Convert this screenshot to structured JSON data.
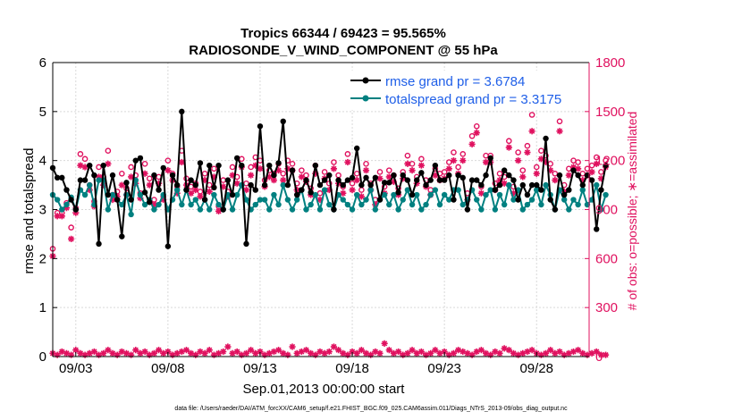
{
  "chart_data": {
    "type": "line",
    "title_line1": "Tropics 66344 / 69423 = 95.565%",
    "title_line2": "RADIOSONDE_V_WIND_COMPONENT @ 55 hPa",
    "xlabel": "Sep.01,2013 00:00:00 start",
    "ylabel_left": "rmse and totalspread",
    "ylabel_right": "# of obs: o=possible; ∗=assimilated",
    "footer": "data file: /Users/raeder/DAI/ATM_forcXX/CAM6_setup/f.e21.FHIST_BGC.f09_025.CAM6assim.011/Diags_NTrS_2013-09/obs_diag_output.nc",
    "xlim": [
      1.75,
      30.85
    ],
    "ylim_left": [
      0,
      6
    ],
    "ylim_right": [
      0,
      1800
    ],
    "x_ticks": [
      3,
      8,
      13,
      18,
      23,
      28
    ],
    "x_tick_labels": [
      "09/03",
      "09/08",
      "09/13",
      "09/18",
      "09/23",
      "09/28"
    ],
    "yleft_ticks": [
      0,
      1,
      2,
      3,
      4,
      5,
      6
    ],
    "yleft_tick_labels": [
      "0",
      "1",
      "2",
      "3",
      "4",
      "5",
      "6"
    ],
    "yright_ticks": [
      0,
      300,
      600,
      900,
      1200,
      1500,
      1800
    ],
    "yright_tick_labels": [
      "0",
      "300",
      "600",
      "900",
      "1200",
      "1500",
      "1800"
    ],
    "x_start": 1.75,
    "x_step": 0.25,
    "series": [
      {
        "name": "rmse",
        "legend": "rmse grand pr = 3.6784",
        "axis": "left",
        "color": "#000000",
        "values": [
          3.85,
          3.65,
          3.65,
          3.4,
          3.2,
          3.0,
          3.6,
          3.6,
          3.9,
          3.7,
          2.3,
          3.9,
          3.3,
          3.7,
          3.2,
          2.45,
          3.55,
          3.2,
          4.0,
          4.05,
          3.35,
          3.15,
          3.7,
          3.4,
          3.85,
          2.25,
          3.7,
          3.5,
          5.0,
          3.4,
          3.6,
          3.5,
          3.95,
          3.2,
          3.9,
          3.45,
          3.9,
          3.0,
          3.6,
          3.3,
          4.05,
          3.9,
          2.3,
          3.5,
          3.4,
          4.7,
          3.5,
          3.9,
          3.7,
          3.95,
          4.8,
          3.5,
          3.8,
          3.3,
          3.4,
          3.6,
          3.35,
          3.9,
          3.5,
          3.6,
          3.7,
          3.0,
          3.6,
          3.5,
          3.6,
          3.65,
          4.25,
          3.5,
          3.65,
          3.5,
          3.65,
          3.2,
          3.55,
          3.55,
          3.7,
          3.35,
          3.7,
          3.6,
          3.3,
          3.6,
          3.75,
          3.5,
          3.6,
          3.9,
          3.6,
          3.6,
          3.7,
          3.2,
          3.7,
          3.65,
          3.0,
          3.6,
          3.6,
          3.5,
          3.7,
          4.05,
          3.4,
          3.5,
          3.8,
          3.7,
          3.6,
          3.2,
          3.5,
          3.3,
          3.5,
          3.5,
          3.4,
          4.45,
          3.2,
          3.0,
          3.7,
          3.3,
          3.4,
          3.8,
          3.7,
          3.5,
          3.7,
          3.6,
          2.6,
          3.4,
          3.9
        ]
      },
      {
        "name": "totalspread",
        "legend": "totalspread grand pr = 3.3175",
        "axis": "left",
        "color": "#008080",
        "values": [
          3.3,
          3.2,
          3.0,
          3.1,
          3.25,
          3.0,
          3.4,
          3.3,
          3.5,
          3.1,
          3.6,
          3.6,
          3.0,
          3.3,
          3.2,
          3.1,
          3.3,
          2.9,
          3.6,
          3.3,
          3.1,
          3.2,
          3.0,
          3.1,
          3.3,
          3.0,
          3.2,
          3.4,
          3.1,
          3.4,
          3.1,
          3.2,
          3.0,
          3.2,
          3.0,
          3.3,
          3.1,
          3.0,
          3.3,
          3.0,
          3.3,
          3.5,
          3.2,
          3.0,
          3.1,
          3.2,
          3.2,
          3.0,
          3.3,
          3.1,
          3.5,
          3.2,
          3.0,
          3.2,
          3.4,
          3.0,
          3.1,
          3.3,
          3.0,
          3.4,
          3.1,
          3.0,
          3.3,
          3.2,
          3.1,
          3.0,
          3.3,
          3.1,
          3.2,
          3.4,
          3.0,
          3.2,
          3.3,
          3.1,
          3.3,
          3.0,
          3.2,
          3.4,
          3.1,
          3.3,
          3.0,
          3.1,
          3.3,
          3.4,
          3.1,
          3.3,
          3.2,
          3.4,
          3.4,
          3.1,
          3.2,
          3.4,
          3.2,
          3.0,
          3.3,
          3.4,
          3.0,
          3.3,
          3.1,
          3.5,
          3.2,
          3.4,
          3.0,
          3.1,
          3.2,
          3.4,
          3.1,
          3.5,
          3.3,
          3.0,
          3.4,
          3.2,
          3.0,
          3.2,
          3.1,
          3.4,
          3.1,
          3.2,
          3.5,
          3.0,
          3.3
        ]
      },
      {
        "name": "possible",
        "legend": "o=possible",
        "axis": "right",
        "color": "#e0115f",
        "values": [
          660,
          880,
          880,
          940,
          790,
          910,
          1240,
          1210,
          1050,
          950,
          1160,
          1100,
          1260,
          990,
          1010,
          1120,
          1030,
          1160,
          1110,
          1000,
          1180,
          1090,
          960,
          1100,
          980,
          1200,
          1120,
          1040,
          1260,
          1090,
          1040,
          1060,
          1010,
          1120,
          1050,
          1150,
          920,
          1080,
          1010,
          1160,
          1100,
          1210,
          1060,
          1160,
          1220,
          1200,
          1080,
          1140,
          1120,
          1180,
          1120,
          1200,
          1180,
          1060,
          1140,
          1110,
          1030,
          1170,
          1000,
          1130,
          1060,
          1190,
          1110,
          1040,
          1240,
          1060,
          1120,
          1020,
          1180,
          1060,
          960,
          1130,
          1040,
          1140,
          1110,
          1030,
          1130,
          1230,
          1180,
          1100,
          1210,
          1080,
          1020,
          1150,
          1120,
          1130,
          1190,
          1250,
          1160,
          1240,
          1000,
          1350,
          1410,
          1040,
          1230,
          1230,
          1060,
          1120,
          1100,
          1320,
          1040,
          1250,
          1140,
          1290,
          1480,
          1160,
          1260,
          1230,
          1180,
          1120,
          1440,
          1050,
          1150,
          1200,
          1190,
          1120,
          1150,
          1170,
          1220,
          1130,
          1200
        ]
      },
      {
        "name": "assimilated",
        "legend": "∗=assimilated",
        "axis": "right",
        "color": "#e0115f",
        "values": [
          615,
          860,
          860,
          910,
          720,
          880,
          1170,
          1160,
          1020,
          920,
          1100,
          1050,
          1180,
          960,
          980,
          1050,
          990,
          1100,
          1060,
          970,
          1120,
          1050,
          930,
          1060,
          960,
          1140,
          1080,
          1000,
          1190,
          1050,
          1000,
          1020,
          980,
          1080,
          1010,
          1100,
          890,
          1040,
          980,
          1110,
          1060,
          1160,
          1020,
          1110,
          1170,
          1150,
          1040,
          1100,
          1080,
          1140,
          1080,
          1150,
          1140,
          1020,
          1100,
          1070,
          990,
          1120,
          960,
          1090,
          1020,
          1150,
          1060,
          1000,
          1190,
          1020,
          1080,
          980,
          1140,
          1020,
          930,
          1090,
          1000,
          1100,
          1070,
          990,
          1090,
          1180,
          1140,
          1060,
          1170,
          1040,
          990,
          1110,
          1080,
          1090,
          1150,
          1200,
          1120,
          1200,
          960,
          1300,
          1370,
          1000,
          1190,
          1190,
          1020,
          1080,
          1060,
          1280,
          1000,
          1200,
          1100,
          1250,
          1380,
          1120,
          1210,
          1190,
          1140,
          1080,
          1380,
          1010,
          1110,
          1160,
          1150,
          1080,
          1110,
          1130,
          1180,
          1090,
          1160
        ]
      },
      {
        "name": "low-band",
        "legend": "",
        "axis": "right",
        "color": "#e0115f",
        "values": [
          20,
          10,
          30,
          20,
          10,
          40,
          20,
          10,
          20,
          30,
          10,
          20,
          40,
          20,
          10,
          30,
          20,
          10,
          40,
          20,
          30,
          10,
          20,
          40,
          20,
          30,
          10,
          20,
          30,
          40,
          20,
          10,
          30,
          20,
          40,
          10,
          20,
          30,
          60,
          20,
          30,
          10,
          20,
          40,
          20,
          30,
          10,
          20,
          30,
          40,
          20,
          10,
          60,
          20,
          30,
          40,
          20,
          10,
          30,
          20,
          30,
          60,
          40,
          20,
          10,
          30,
          20,
          40,
          20,
          10,
          30,
          20,
          80,
          40,
          20,
          30,
          10,
          20,
          40,
          20,
          30,
          10,
          20,
          40,
          20,
          30,
          10,
          20,
          40,
          30,
          20,
          10,
          30,
          40,
          20,
          10,
          30,
          20,
          50,
          40,
          20,
          10,
          20,
          30,
          40,
          20,
          10,
          20,
          40,
          20,
          30,
          10,
          20,
          30,
          40,
          20,
          10,
          20,
          30,
          10,
          10
        ]
      }
    ]
  }
}
